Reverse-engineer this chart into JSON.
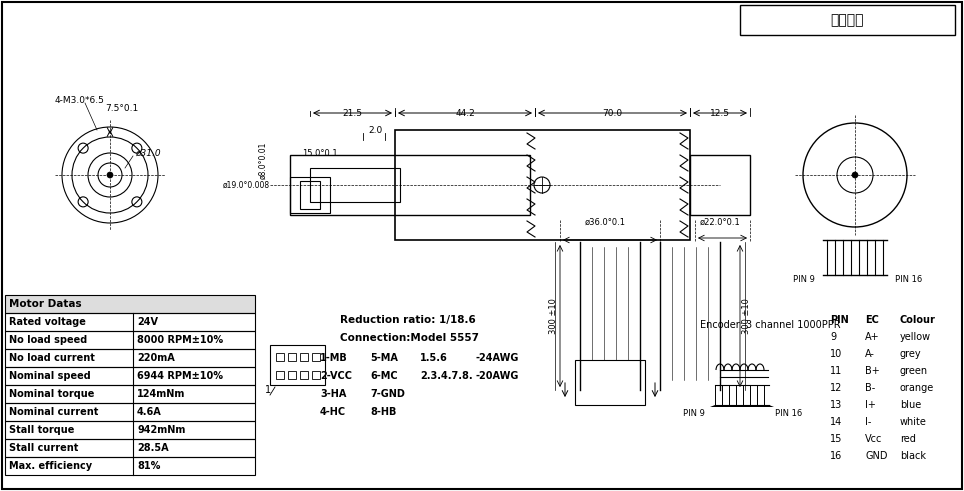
{
  "bg_color": "#ffffff",
  "line_color": "#000000",
  "title_box": "客戶型號",
  "table_headers": [
    "Motor Datas",
    ""
  ],
  "table_rows": [
    [
      "Rated voltage",
      "24V"
    ],
    [
      "No load speed",
      "8000 RPM±10%"
    ],
    [
      "No load current",
      "220mA"
    ],
    [
      "Nominal speed",
      "6944 RPM±10%"
    ],
    [
      "Nominal torque",
      "124mNm"
    ],
    [
      "Nominal current",
      "4.6A"
    ],
    [
      "Stall torque",
      "942mNm"
    ],
    [
      "Stall current",
      "28.5A"
    ],
    [
      "Max. efficiency",
      "81%"
    ]
  ],
  "reduction_text": "Reduction ratio: 1/18.6",
  "connection_text": "Connection:Model 5557",
  "wiring": [
    [
      "1-MB",
      "5-MA",
      "1.5.6",
      "-24AWG"
    ],
    [
      "2-VCC",
      "6-MC",
      "2.3.4.7.8.",
      "-20AWG"
    ],
    [
      "3-HA",
      "7-GND",
      "",
      ""
    ],
    [
      "4-HC",
      "8-HB",
      "",
      ""
    ]
  ],
  "encoder_text": "Encoder: 3 channel 1000PPR",
  "pin_table_header": [
    "PIN",
    "EC",
    "Colour"
  ],
  "pin_rows": [
    [
      "9",
      "A+",
      "yellow"
    ],
    [
      "10",
      "A-",
      "grey"
    ],
    [
      "11",
      "B+",
      "green"
    ],
    [
      "12",
      "B-",
      "orange"
    ],
    [
      "13",
      "I+",
      "blue"
    ],
    [
      "14",
      "I-",
      "white"
    ],
    [
      "15",
      "Vcc",
      "red"
    ],
    [
      "16",
      "GND",
      "black"
    ]
  ],
  "dim_top": [
    "21.5",
    "44.2",
    "70.0",
    "12.5"
  ],
  "dim_shaft": [
    "2.0",
    "15.0°0.1",
    "ø8.0°0.01"
  ],
  "dim_body": [
    "ø19.0+0.008/-0.008",
    "ø36.0°0.1",
    "ø22.0°0.1"
  ],
  "dim_side": [
    "4-M3.0*6.5",
    "7.5°0.1",
    "ø31.0"
  ],
  "cable_len": [
    "300 ±10",
    "300 ±10"
  ]
}
